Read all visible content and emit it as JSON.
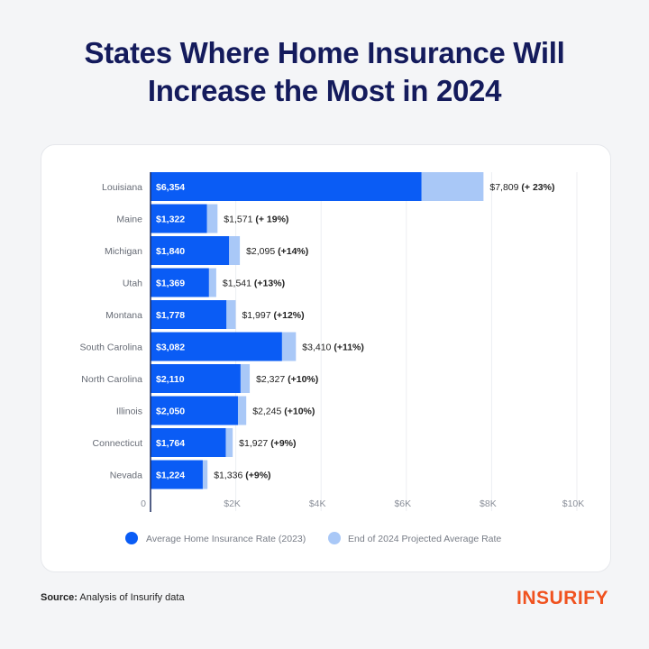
{
  "title_line1": "States Where Home Insurance Will",
  "title_line2": "Increase the Most in 2024",
  "source_label": "Source:",
  "source_text": " Analysis of Insurify data",
  "logo": "INSURIFY",
  "colors": {
    "base": "#0a5cf5",
    "projected": "#a9c8f7",
    "title": "#141b5c",
    "logo": "#f0521f"
  },
  "chart_data": {
    "type": "bar",
    "orientation": "horizontal",
    "categories": [
      "Louisiana",
      "Maine",
      "Michigan",
      "Utah",
      "Montana",
      "South Carolina",
      "North Carolina",
      "Illinois",
      "Connecticut",
      "Nevada"
    ],
    "series": [
      {
        "name": "Average Home Insurance Rate (2023)",
        "values": [
          6354,
          1322,
          1840,
          1369,
          1778,
          3082,
          2110,
          2050,
          1764,
          1224
        ],
        "labels": [
          "$6,354",
          "$1,322",
          "$1,840",
          "$1,369",
          "$1,778",
          "$3,082",
          "$2,110",
          "$2,050",
          "$1,764",
          "$1,224"
        ]
      },
      {
        "name": "End of 2024 Projected Average Rate",
        "values": [
          7809,
          1571,
          2095,
          1541,
          1997,
          3410,
          2327,
          2245,
          1927,
          1336
        ],
        "labels": [
          "$7,809",
          "$1,571",
          "$2,095",
          "$1,541",
          "$1,997",
          "$3,410",
          "$2,327",
          "$2,245",
          "$1,927",
          "$1,336"
        ],
        "changes": [
          "(+ 23%)",
          "(+ 19%)",
          "(+14%)",
          "(+13%)",
          "(+12%)",
          "(+11%)",
          "(+10%)",
          "(+10%)",
          "(+9%)",
          "(+9%)"
        ]
      }
    ],
    "xlim": [
      0,
      10000
    ],
    "xticks": [
      0,
      2000,
      4000,
      6000,
      8000,
      10000
    ],
    "xtick_labels": [
      "0",
      "$2K",
      "$4K",
      "$6K",
      "$8K",
      "$10K"
    ],
    "grid": true,
    "legend_position": "bottom"
  }
}
